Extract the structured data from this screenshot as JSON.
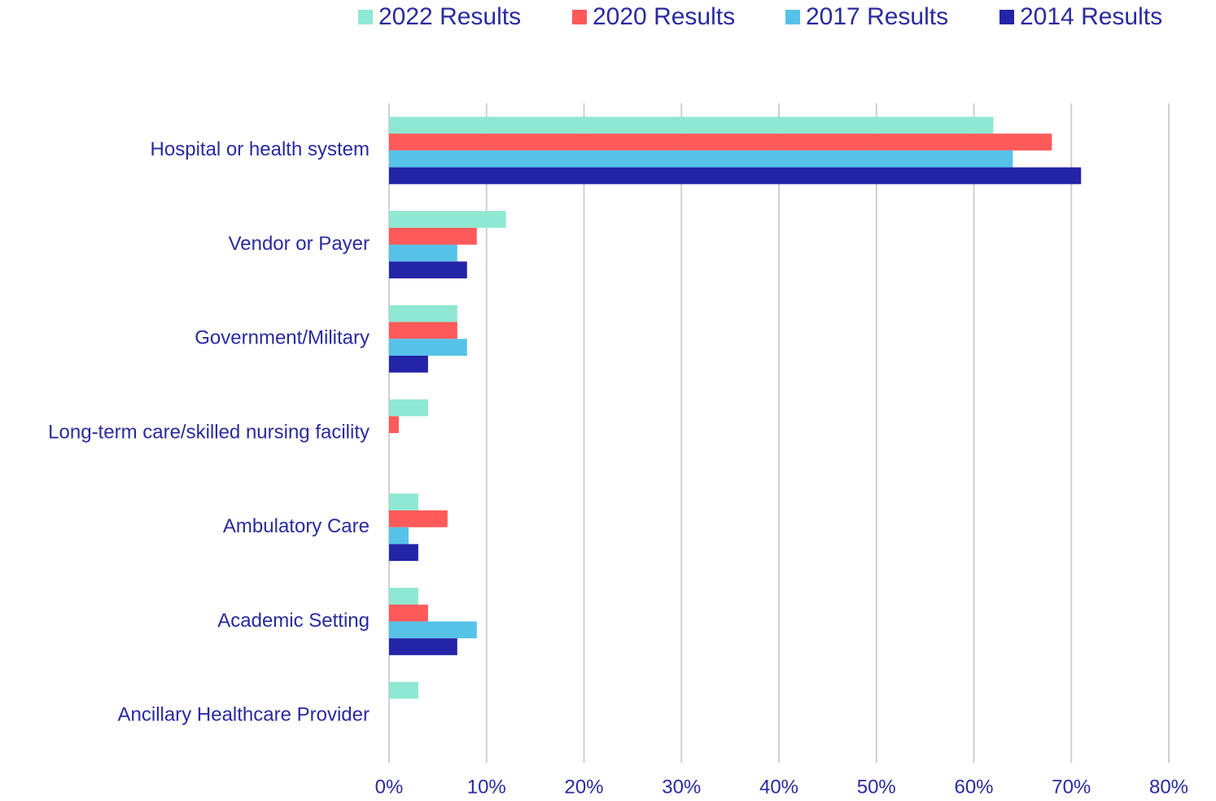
{
  "chart_data": {
    "type": "bar",
    "orientation": "horizontal",
    "categories": [
      "Hospital or health system",
      "Vendor or Payer",
      "Government/Military",
      "Long-term care/skilled nursing facility",
      "Ambulatory Care",
      "Academic Setting",
      "Ancillary Healthcare Provider"
    ],
    "series": [
      {
        "name": "2022 Results",
        "color": "#8ee8d2",
        "values": [
          62,
          12,
          7,
          4,
          3,
          3,
          3
        ]
      },
      {
        "name": "2020 Results",
        "color": "#ff5a5a",
        "values": [
          68,
          9,
          7,
          1,
          6,
          4,
          null
        ]
      },
      {
        "name": "2017 Results",
        "color": "#56c2e8",
        "values": [
          64,
          7,
          8,
          null,
          2,
          9,
          null
        ]
      },
      {
        "name": "2014 Results",
        "color": "#2424a8",
        "values": [
          71,
          8,
          4,
          null,
          3,
          7,
          null
        ]
      }
    ],
    "xlim": [
      0,
      80
    ],
    "xticks": [
      {
        "value": 0,
        "label": "0%"
      },
      {
        "value": 10,
        "label": "10%"
      },
      {
        "value": 20,
        "label": "20%"
      },
      {
        "value": 30,
        "label": "30%"
      },
      {
        "value": 40,
        "label": "40%"
      },
      {
        "value": 50,
        "label": "50%"
      },
      {
        "value": 60,
        "label": "60%"
      },
      {
        "value": 70,
        "label": "70%"
      },
      {
        "value": 80,
        "label": "80%"
      }
    ],
    "grid": true,
    "legend": "top"
  }
}
